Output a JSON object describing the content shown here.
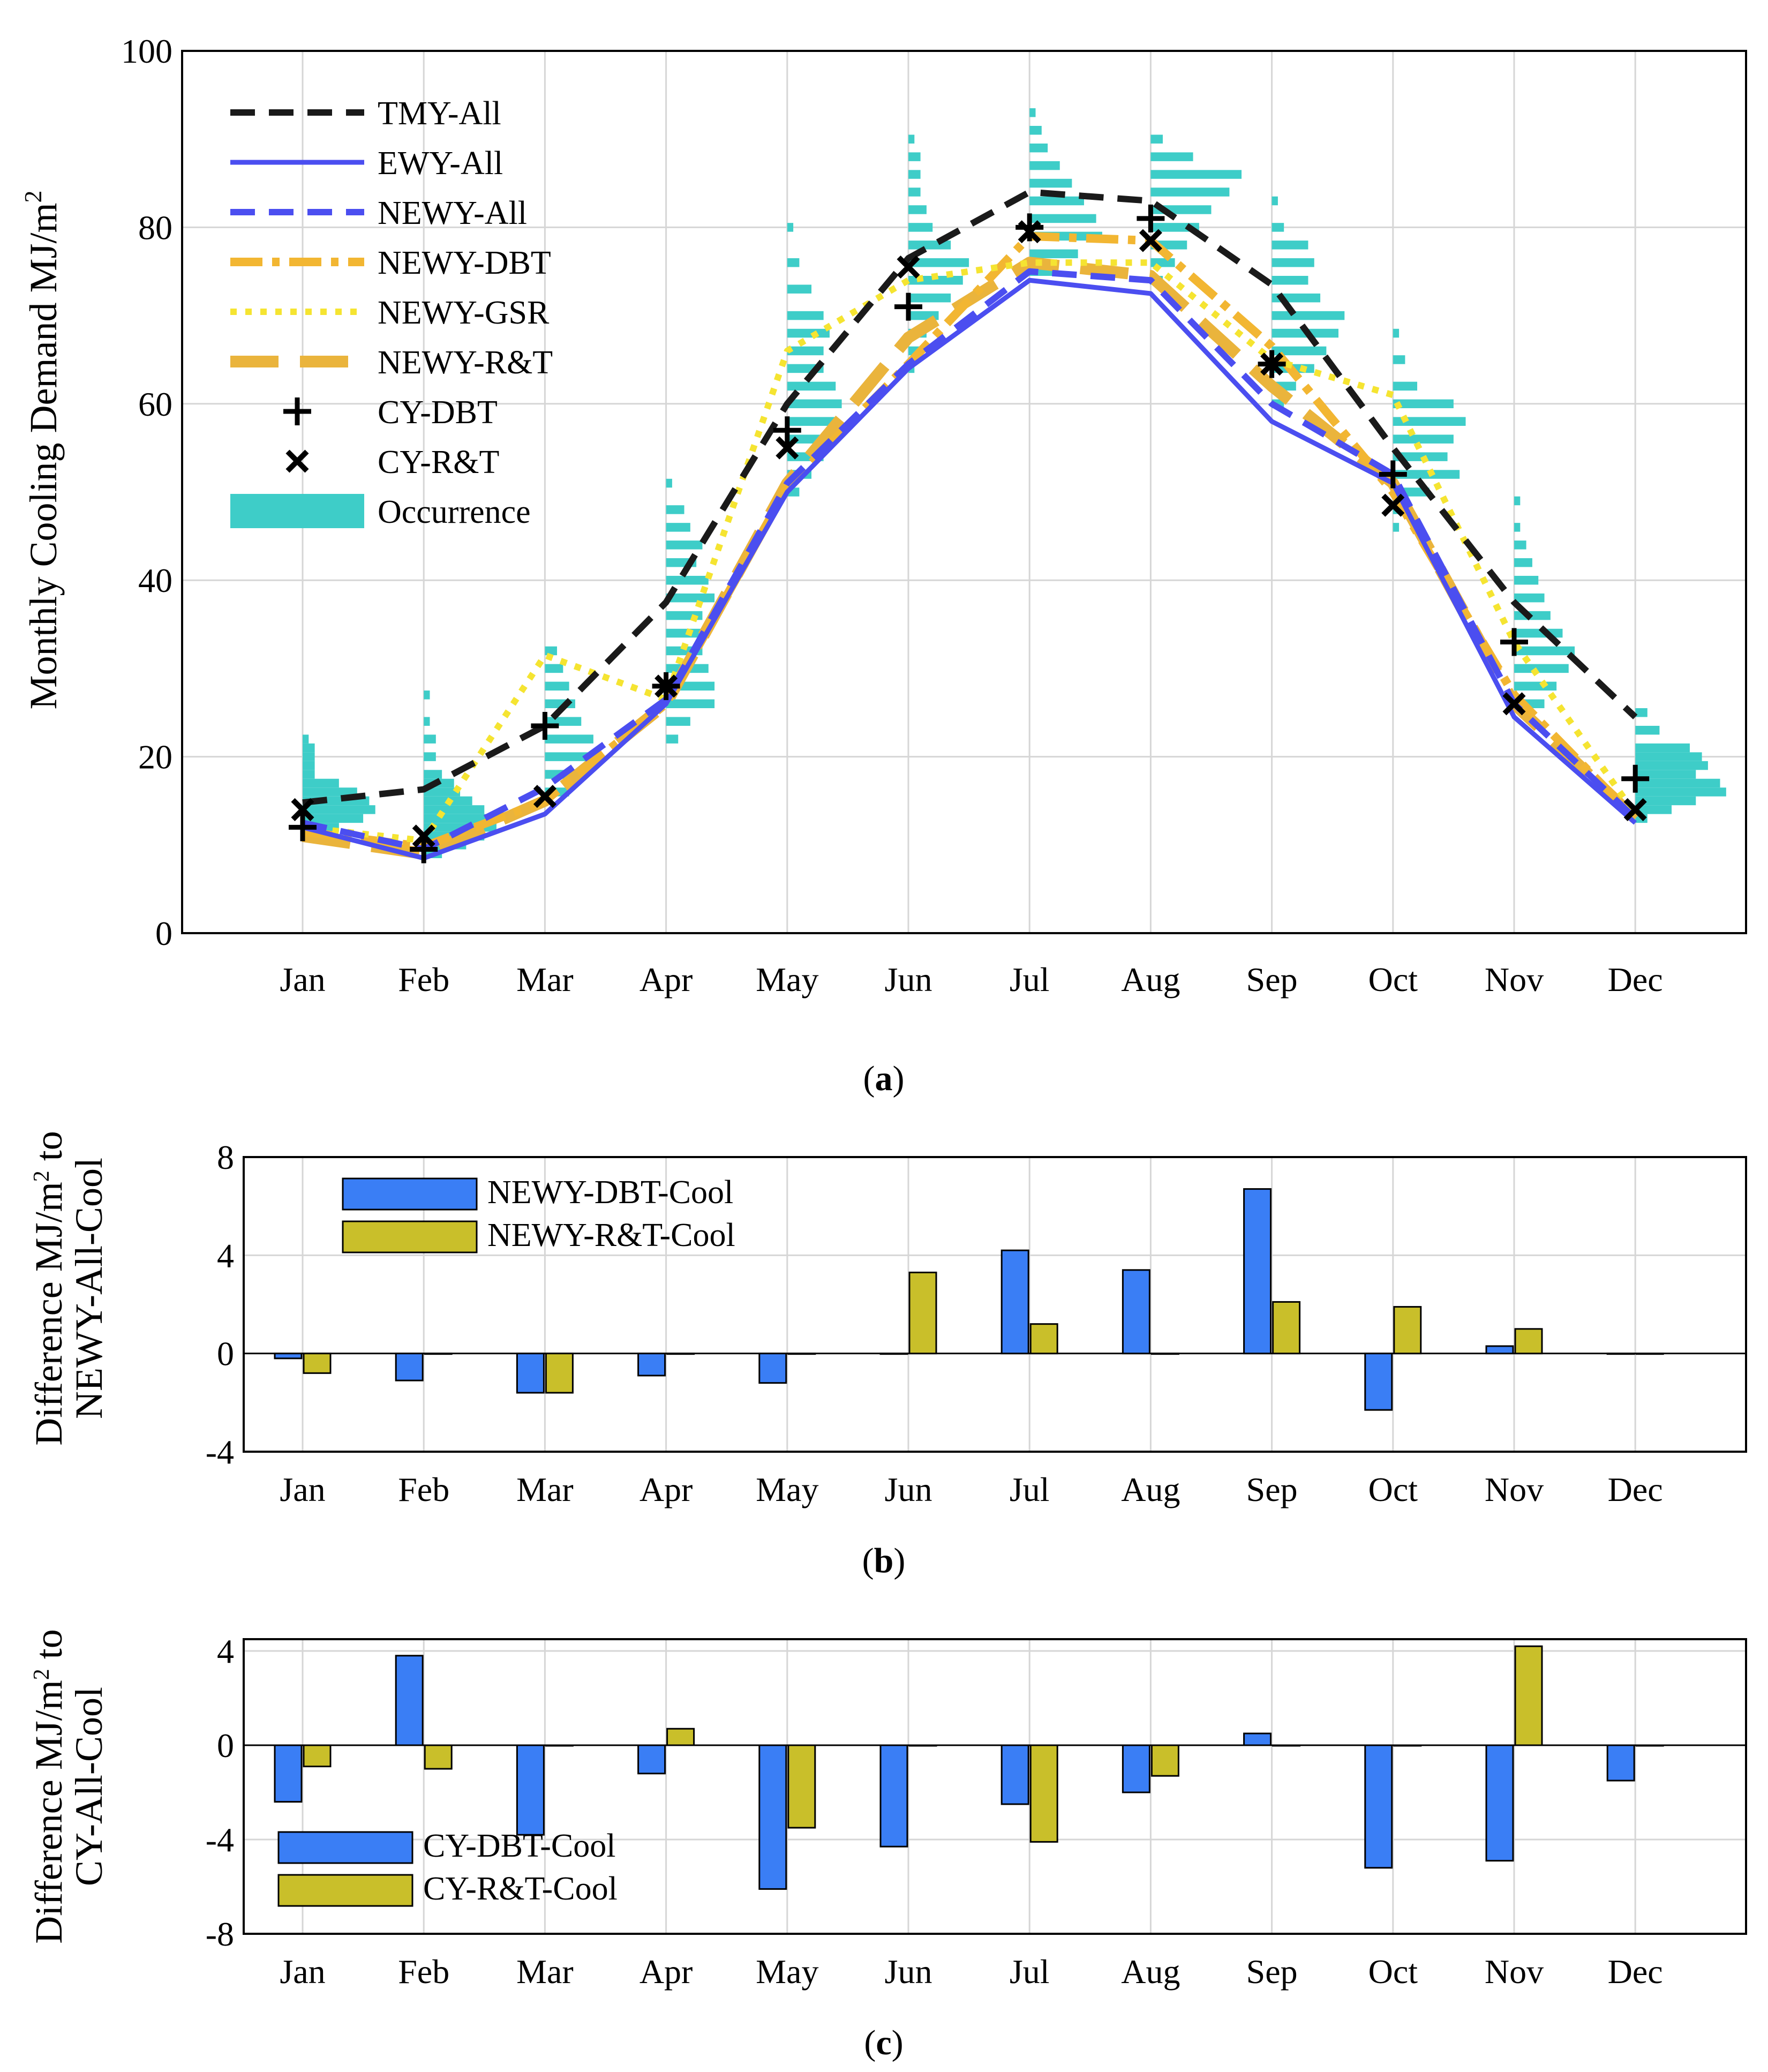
{
  "colors": {
    "tmy": "#1a1a1a",
    "ewy": "#4b4ef0",
    "newy_all": "#4b4ef0",
    "newy_dbt": "#f2b632",
    "newy_gsr": "#f5e431",
    "newy_rt": "#eab43c",
    "markers": "#000000",
    "occurrence": "#3ecdc8",
    "bar_dbt": "#3a7ef5",
    "bar_rt": "#c9bf2a",
    "grid": "#d6d6d6"
  },
  "chart_data": [
    {
      "id": "a",
      "type": "line",
      "caption": {
        "open": "(",
        "letter": "a",
        "close": ")"
      },
      "ylabel": {
        "main": "Monthly Cooling Demand MJ/m",
        "sup": "2"
      },
      "xlabel": "",
      "categories": [
        "Jan",
        "Feb",
        "Mar",
        "Apr",
        "May",
        "Jun",
        "Jul",
        "Aug",
        "Sep",
        "Oct",
        "Nov",
        "Dec"
      ],
      "ylim": [
        0,
        100
      ],
      "yticks": [
        0,
        20,
        40,
        60,
        80,
        100
      ],
      "grid": true,
      "legend_position": "top-left",
      "series": [
        {
          "name": "TMY-All",
          "style": "dashed",
          "color_key": "tmy",
          "values": [
            14.8,
            16.3,
            23.5,
            37.5,
            60.0,
            76.5,
            84.0,
            83.0,
            73.5,
            55.0,
            37.5,
            24.5
          ]
        },
        {
          "name": "EWY-All",
          "style": "solid",
          "color_key": "ewy",
          "values": [
            12.0,
            8.5,
            13.5,
            26.0,
            50.0,
            64.0,
            74.0,
            72.5,
            58.0,
            51.0,
            24.5,
            12.5
          ]
        },
        {
          "name": "NEWY-All",
          "style": "dashed",
          "color_key": "newy_all",
          "values": [
            12.5,
            9.5,
            16.5,
            26.5,
            51.0,
            64.5,
            75.0,
            74.0,
            60.0,
            52.0,
            26.0,
            13.0
          ]
        },
        {
          "name": "NEWY-DBT",
          "style": "dashdot",
          "color_key": "newy_dbt",
          "values": [
            11.5,
            9.8,
            15.0,
            26.0,
            50.5,
            64.5,
            79.0,
            78.5,
            66.5,
            50.0,
            27.0,
            13.0
          ]
        },
        {
          "name": "NEWY-GSR",
          "style": "dotted",
          "color_key": "newy_gsr",
          "values": [
            12.0,
            10.5,
            31.5,
            26.5,
            66.0,
            74.0,
            76.0,
            76.0,
            65.0,
            61.0,
            33.0,
            13.5
          ]
        },
        {
          "name": "NEWY-R&T",
          "style": "longdash",
          "color_key": "newy_rt",
          "values": [
            11.0,
            9.0,
            15.0,
            26.0,
            51.0,
            67.5,
            76.0,
            74.5,
            62.0,
            51.0,
            26.0,
            13.0
          ]
        }
      ],
      "markers": [
        {
          "name": "CY-DBT",
          "symbol": "plus",
          "values": [
            12.0,
            9.5,
            23.5,
            28.0,
            57.0,
            71.0,
            80.0,
            81.0,
            64.5,
            52.0,
            33.0,
            17.5
          ]
        },
        {
          "name": "CY-R&T",
          "symbol": "x",
          "values": [
            14.0,
            11.0,
            15.5,
            28.0,
            55.0,
            75.5,
            79.5,
            78.5,
            64.5,
            48.5,
            26.0,
            14.0
          ]
        }
      ],
      "occurrence": {
        "name": "Occurrence",
        "bin_width": 1,
        "max_width_months": 0.85,
        "months": [
          {
            "bins": [
              [
                22,
                0.05
              ],
              [
                21,
                0.1
              ],
              [
                20,
                0.1
              ],
              [
                19,
                0.1
              ],
              [
                18,
                0.1
              ],
              [
                17,
                0.3
              ],
              [
                16,
                0.45
              ],
              [
                15,
                0.55
              ],
              [
                14,
                0.6
              ],
              [
                13,
                0.5
              ],
              [
                12,
                0.3
              ],
              [
                11,
                0.1
              ]
            ]
          },
          {
            "bins": [
              [
                27,
                0.05
              ],
              [
                24,
                0.05
              ],
              [
                22,
                0.1
              ],
              [
                20,
                0.1
              ],
              [
                18,
                0.15
              ],
              [
                17,
                0.25
              ],
              [
                16,
                0.3
              ],
              [
                15,
                0.4
              ],
              [
                14,
                0.5
              ],
              [
                13,
                0.55
              ],
              [
                12,
                0.6
              ],
              [
                11,
                0.5
              ],
              [
                10,
                0.35
              ],
              [
                9,
                0.15
              ]
            ]
          },
          {
            "bins": [
              [
                32,
                0.1
              ],
              [
                30,
                0.15
              ],
              [
                28,
                0.2
              ],
              [
                26,
                0.25
              ],
              [
                24,
                0.3
              ],
              [
                22,
                0.4
              ],
              [
                20,
                0.45
              ],
              [
                18,
                0.3
              ],
              [
                16,
                0.2
              ]
            ]
          },
          {
            "bins": [
              [
                51,
                0.05
              ],
              [
                48,
                0.15
              ],
              [
                46,
                0.2
              ],
              [
                44,
                0.3
              ],
              [
                42,
                0.25
              ],
              [
                40,
                0.35
              ],
              [
                38,
                0.4
              ],
              [
                36,
                0.3
              ],
              [
                34,
                0.3
              ],
              [
                32,
                0.3
              ],
              [
                30,
                0.35
              ],
              [
                28,
                0.4
              ],
              [
                26,
                0.4
              ],
              [
                24,
                0.2
              ],
              [
                22,
                0.1
              ]
            ]
          },
          {
            "bins": [
              [
                80,
                0.05
              ],
              [
                76,
                0.1
              ],
              [
                73,
                0.2
              ],
              [
                70,
                0.3
              ],
              [
                68,
                0.35
              ],
              [
                66,
                0.3
              ],
              [
                64,
                0.3
              ],
              [
                62,
                0.4
              ],
              [
                60,
                0.45
              ],
              [
                58,
                0.4
              ],
              [
                56,
                0.35
              ],
              [
                54,
                0.3
              ],
              [
                52,
                0.2
              ],
              [
                50,
                0.1
              ]
            ]
          },
          {
            "bins": [
              [
                90,
                0.05
              ],
              [
                88,
                0.1
              ],
              [
                86,
                0.1
              ],
              [
                84,
                0.1
              ],
              [
                82,
                0.15
              ],
              [
                80,
                0.2
              ],
              [
                78,
                0.35
              ],
              [
                76,
                0.5
              ],
              [
                74,
                0.45
              ],
              [
                72,
                0.35
              ],
              [
                70,
                0.25
              ],
              [
                68,
                0.15
              ],
              [
                66,
                0.1
              ],
              [
                64,
                0.05
              ]
            ]
          },
          {
            "bins": [
              [
                93,
                0.05
              ],
              [
                91,
                0.1
              ],
              [
                89,
                0.15
              ],
              [
                87,
                0.25
              ],
              [
                85,
                0.35
              ],
              [
                83,
                0.45
              ],
              [
                81,
                0.55
              ],
              [
                79,
                0.6
              ],
              [
                77,
                0.4
              ],
              [
                75,
                0.2
              ]
            ]
          },
          {
            "bins": [
              [
                90,
                0.1
              ],
              [
                88,
                0.35
              ],
              [
                86,
                0.75
              ],
              [
                84,
                0.65
              ],
              [
                82,
                0.5
              ],
              [
                80,
                0.4
              ],
              [
                78,
                0.3
              ],
              [
                76,
                0.2
              ],
              [
                74,
                0.1
              ]
            ]
          },
          {
            "bins": [
              [
                83,
                0.05
              ],
              [
                80,
                0.1
              ],
              [
                78,
                0.3
              ],
              [
                76,
                0.35
              ],
              [
                74,
                0.3
              ],
              [
                72,
                0.4
              ],
              [
                70,
                0.6
              ],
              [
                68,
                0.55
              ],
              [
                66,
                0.45
              ],
              [
                64,
                0.35
              ],
              [
                62,
                0.2
              ],
              [
                60,
                0.1
              ]
            ]
          },
          {
            "bins": [
              [
                68,
                0.05
              ],
              [
                65,
                0.1
              ],
              [
                62,
                0.2
              ],
              [
                60,
                0.5
              ],
              [
                58,
                0.6
              ],
              [
                56,
                0.5
              ],
              [
                54,
                0.45
              ],
              [
                52,
                0.55
              ],
              [
                50,
                0.3
              ],
              [
                48,
                0.15
              ],
              [
                46,
                0.05
              ]
            ]
          },
          {
            "bins": [
              [
                49,
                0.05
              ],
              [
                46,
                0.05
              ],
              [
                44,
                0.1
              ],
              [
                42,
                0.15
              ],
              [
                40,
                0.2
              ],
              [
                38,
                0.25
              ],
              [
                36,
                0.3
              ],
              [
                34,
                0.4
              ],
              [
                32,
                0.5
              ],
              [
                30,
                0.45
              ],
              [
                28,
                0.35
              ],
              [
                26,
                0.25
              ]
            ]
          },
          {
            "bins": [
              [
                25,
                0.1
              ],
              [
                23,
                0.2
              ],
              [
                21,
                0.45
              ],
              [
                20,
                0.55
              ],
              [
                19,
                0.6
              ],
              [
                18,
                0.5
              ],
              [
                17,
                0.7
              ],
              [
                16,
                0.75
              ],
              [
                15,
                0.5
              ],
              [
                14,
                0.3
              ],
              [
                13,
                0.1
              ]
            ]
          }
        ]
      }
    },
    {
      "id": "b",
      "type": "bar",
      "caption": {
        "open": "(",
        "letter": "b",
        "close": ")"
      },
      "ylabel": {
        "line1_main": "Difference MJ/m",
        "line1_sup": "2",
        "line1_tail": " to",
        "line2": "NEWY-All-Cool"
      },
      "categories": [
        "Jan",
        "Feb",
        "Mar",
        "Apr",
        "May",
        "Jun",
        "Jul",
        "Aug",
        "Sep",
        "Oct",
        "Nov",
        "Dec"
      ],
      "ylim": [
        -4,
        8
      ],
      "yticks": [
        -4,
        0,
        4,
        8
      ],
      "grid": true,
      "legend_position": "top-left",
      "series": [
        {
          "name": "NEWY-DBT-Cool",
          "color_key": "bar_dbt",
          "values": [
            -0.2,
            -1.1,
            -1.6,
            -0.9,
            -1.2,
            0.0,
            4.2,
            3.4,
            6.7,
            -2.3,
            0.3,
            0.0
          ]
        },
        {
          "name": "NEWY-R&T-Cool",
          "color_key": "bar_rt",
          "values": [
            -0.8,
            0.0,
            -1.6,
            0.0,
            0.0,
            3.3,
            1.2,
            0.0,
            2.1,
            1.9,
            1.0,
            0.0
          ]
        }
      ]
    },
    {
      "id": "c",
      "type": "bar",
      "caption": {
        "open": "(",
        "letter": "c",
        "close": ")"
      },
      "ylabel": {
        "line1_main": "Difference MJ/m",
        "line1_sup": "2",
        "line1_tail": " to",
        "line2": "CY-All-Cool"
      },
      "categories": [
        "Jan",
        "Feb",
        "Mar",
        "Apr",
        "May",
        "Jun",
        "Jul",
        "Aug",
        "Sep",
        "Oct",
        "Nov",
        "Dec"
      ],
      "ylim": [
        -8,
        4.5
      ],
      "yticks": [
        -8,
        -4,
        0,
        4
      ],
      "grid": true,
      "legend_position": "bottom-left",
      "series": [
        {
          "name": "CY-DBT-Cool",
          "color_key": "bar_dbt",
          "values": [
            -2.4,
            3.8,
            -3.8,
            -1.2,
            -6.1,
            -4.3,
            -2.5,
            -2.0,
            0.5,
            -5.2,
            -4.9,
            -1.5
          ]
        },
        {
          "name": "CY-R&T-Cool",
          "color_key": "bar_rt",
          "values": [
            -0.9,
            -1.0,
            0.0,
            0.7,
            -3.5,
            0.0,
            -4.1,
            -1.3,
            0.0,
            0.0,
            4.2,
            0.0
          ]
        }
      ]
    }
  ]
}
